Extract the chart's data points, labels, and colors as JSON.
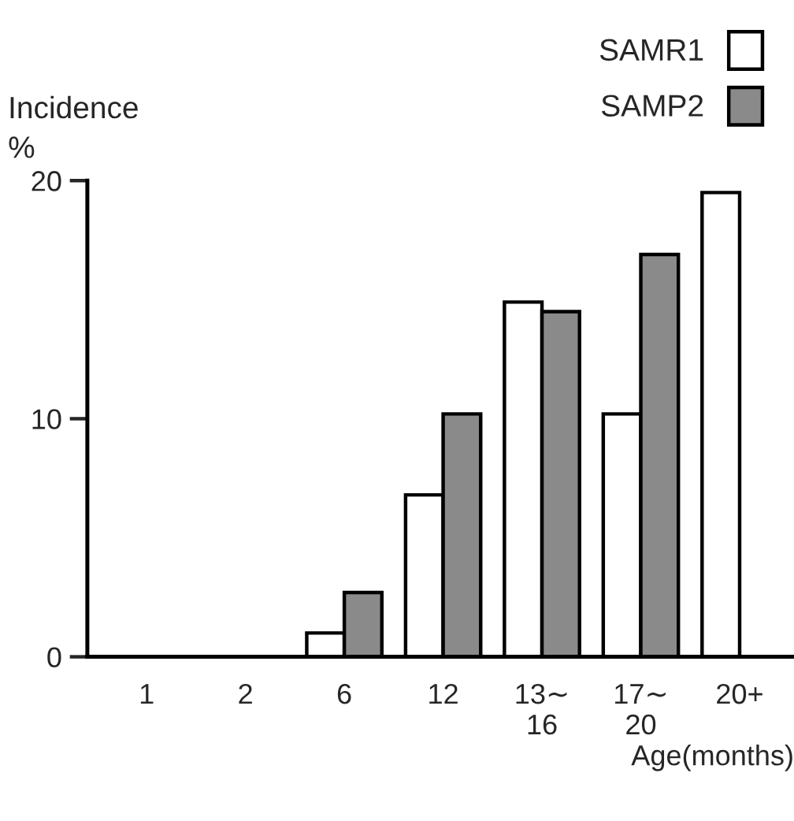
{
  "chart_data": {
    "type": "bar",
    "ylabel": "Incidence\n%",
    "xlabel": "Age(months)",
    "categories": [
      "1",
      "2",
      "6",
      "12",
      "13∼\n16",
      "17∼\n20",
      "20+"
    ],
    "series": [
      {
        "name": "SAMR1",
        "color": "#ffffff",
        "values": [
          null,
          null,
          1.0,
          6.8,
          14.9,
          10.2,
          19.5
        ]
      },
      {
        "name": "SAMP2",
        "color": "#8a8a8a",
        "values": [
          null,
          null,
          2.7,
          10.2,
          14.5,
          16.9,
          null
        ]
      }
    ],
    "ylim": [
      0,
      20
    ],
    "yticks": [
      0,
      10,
      20
    ],
    "legend": "top right",
    "grid": false
  }
}
